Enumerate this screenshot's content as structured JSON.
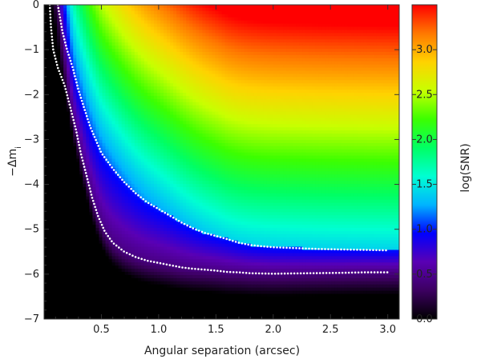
{
  "chart_data": {
    "type": "heatmap",
    "title": "",
    "xlabel": "Angular separation (arcsec)",
    "ylabel": "−Δm",
    "ylabel_subscript": "i",
    "xlim": [
      0.0,
      3.1
    ],
    "ylim": [
      -7,
      0
    ],
    "x_ticks": [
      0.5,
      1.0,
      1.5,
      2.0,
      2.5,
      3.0
    ],
    "x_tick_labels": [
      "0.5",
      "1.0",
      "1.5",
      "2.0",
      "2.5",
      "3.0"
    ],
    "y_ticks": [
      0,
      -1,
      -2,
      -3,
      -4,
      -5,
      -6,
      -7
    ],
    "y_tick_labels": [
      "0",
      "−1",
      "−2",
      "−3",
      "−4",
      "−5",
      "−6",
      "−7"
    ],
    "colorbar": {
      "label": "log(SNR)",
      "range": [
        0.0,
        3.5
      ],
      "ticks": [
        0.0,
        0.5,
        1.0,
        1.5,
        2.0,
        2.5,
        3.0
      ],
      "tick_labels": [
        "0.0",
        "0.5",
        "1.0",
        "1.5",
        "2.0",
        "2.5",
        "3.0"
      ],
      "colormap": [
        "#000000",
        "#3c0060",
        "#5a00b4",
        "#0000ff",
        "#00b4ff",
        "#00ffd2",
        "#00ff64",
        "#3cff00",
        "#c8ff00",
        "#ffd200",
        "#ff7800",
        "#ff0000"
      ]
    },
    "contours": [
      {
        "style": "dotted-white",
        "points": [
          [
            0.12,
            0.0
          ],
          [
            0.14,
            -0.3
          ],
          [
            0.16,
            -0.6
          ],
          [
            0.2,
            -1.0
          ],
          [
            0.25,
            -1.4
          ],
          [
            0.3,
            -1.9
          ],
          [
            0.35,
            -2.3
          ],
          [
            0.4,
            -2.7
          ],
          [
            0.45,
            -3.0
          ],
          [
            0.5,
            -3.3
          ],
          [
            0.6,
            -3.65
          ],
          [
            0.7,
            -3.95
          ],
          [
            0.8,
            -4.2
          ],
          [
            0.9,
            -4.4
          ],
          [
            1.0,
            -4.55
          ],
          [
            1.1,
            -4.7
          ],
          [
            1.2,
            -4.85
          ],
          [
            1.3,
            -4.98
          ],
          [
            1.4,
            -5.08
          ],
          [
            1.5,
            -5.15
          ],
          [
            1.6,
            -5.22
          ],
          [
            1.7,
            -5.3
          ],
          [
            1.8,
            -5.35
          ],
          [
            1.9,
            -5.38
          ],
          [
            2.0,
            -5.4
          ],
          [
            2.2,
            -5.42
          ],
          [
            2.4,
            -5.44
          ],
          [
            2.6,
            -5.45
          ],
          [
            2.8,
            -5.46
          ],
          [
            3.0,
            -5.47
          ]
        ]
      },
      {
        "style": "dotted-white",
        "points": [
          [
            0.05,
            0.0
          ],
          [
            0.06,
            -0.5
          ],
          [
            0.08,
            -1.0
          ],
          [
            0.12,
            -1.4
          ],
          [
            0.18,
            -1.8
          ],
          [
            0.23,
            -2.3
          ],
          [
            0.28,
            -2.8
          ],
          [
            0.32,
            -3.3
          ],
          [
            0.37,
            -3.8
          ],
          [
            0.42,
            -4.3
          ],
          [
            0.47,
            -4.7
          ],
          [
            0.53,
            -5.05
          ],
          [
            0.6,
            -5.3
          ],
          [
            0.7,
            -5.5
          ],
          [
            0.8,
            -5.62
          ],
          [
            0.9,
            -5.7
          ],
          [
            1.0,
            -5.75
          ],
          [
            1.1,
            -5.8
          ],
          [
            1.2,
            -5.85
          ],
          [
            1.3,
            -5.88
          ],
          [
            1.4,
            -5.9
          ],
          [
            1.5,
            -5.92
          ],
          [
            1.6,
            -5.95
          ],
          [
            1.7,
            -5.96
          ],
          [
            1.8,
            -5.98
          ],
          [
            2.0,
            -5.99
          ],
          [
            2.3,
            -5.98
          ],
          [
            2.6,
            -5.97
          ],
          [
            2.8,
            -5.96
          ],
          [
            3.0,
            -5.96
          ]
        ]
      }
    ]
  }
}
